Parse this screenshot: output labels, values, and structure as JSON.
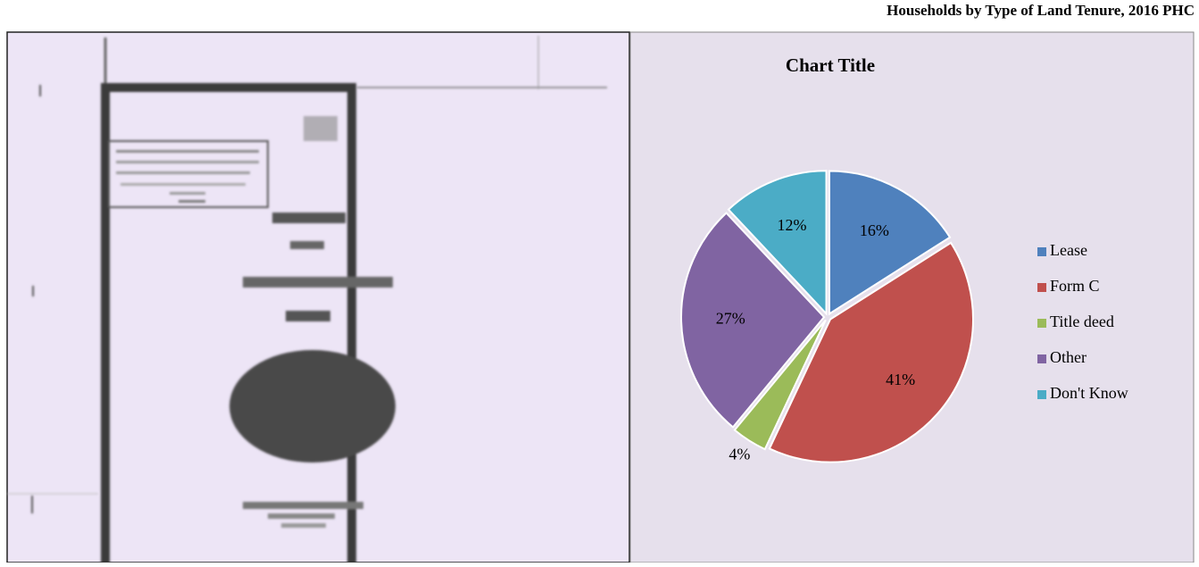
{
  "heading": "Households by Type of Land Tenure, 2016 PHC",
  "chart_data": {
    "type": "pie",
    "title": "Chart Title",
    "categories": [
      "Lease",
      "Form C",
      "Title deed",
      "Other",
      "Don't Know"
    ],
    "values": [
      16,
      41,
      4,
      27,
      12
    ],
    "value_labels": [
      "16%",
      "41%",
      "4%",
      "27%",
      "12%"
    ],
    "colors": [
      "#4f81bd",
      "#c0504d",
      "#9bbb59",
      "#8064a2",
      "#4bacc6"
    ],
    "legend": "right"
  }
}
